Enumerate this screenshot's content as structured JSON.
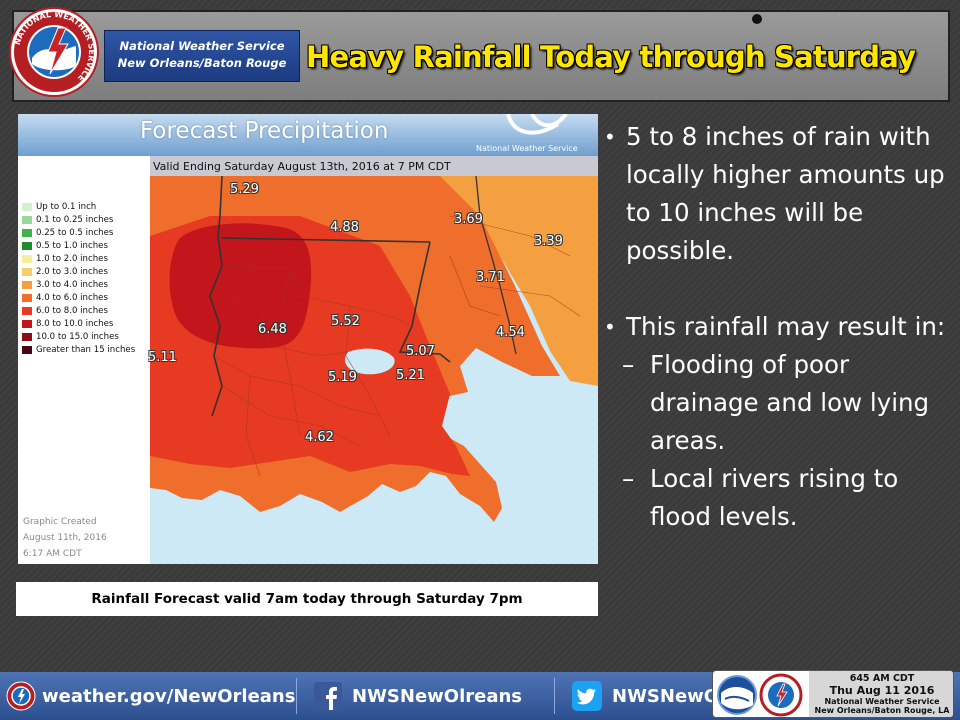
{
  "header": {
    "office_line1": "National Weather Service",
    "office_line2": "New Orleans/Baton Rouge",
    "title": "Heavy Rainfall Today through Saturday",
    "logo_text": "NATIONAL WEATHER SERVICE",
    "logo_icon": "nws-seal-icon"
  },
  "map": {
    "title": "Forecast Precipitation",
    "brand": "National Weather Service",
    "valid": "Valid Ending Saturday August 13th, 2016 at 7 PM CDT",
    "legend": [
      {
        "label": "Up to 0.1 inch",
        "color": "#d4f0d4"
      },
      {
        "label": "0.1 to 0.25 inches",
        "color": "#9ad89a"
      },
      {
        "label": "0.25 to 0.5 inches",
        "color": "#3fb24a"
      },
      {
        "label": "0.5 to 1.0 inches",
        "color": "#1f8a2e"
      },
      {
        "label": "1.0 to 2.0 inches",
        "color": "#f5eda0"
      },
      {
        "label": "2.0 to 3.0 inches",
        "color": "#f7cf6a"
      },
      {
        "label": "3.0 to 4.0 inches",
        "color": "#f5a040"
      },
      {
        "label": "4.0 to 6.0 inches",
        "color": "#ef6e2c"
      },
      {
        "label": "6.0 to 8.0 inches",
        "color": "#e63a22"
      },
      {
        "label": "8.0 to 10.0 inches",
        "color": "#c3151c"
      },
      {
        "label": "10.0 to 15.0 inches",
        "color": "#8a0d1a"
      },
      {
        "label": "Greater than 15 inches",
        "color": "#4a0514"
      }
    ],
    "created_line1": "Graphic Created",
    "created_line2": "August 11th, 2016",
    "created_line3": "6:17 AM CDT",
    "values": [
      "5.29",
      "4.88",
      "3.69",
      "3.39",
      "3.71",
      "6.48",
      "5.52",
      "4.54",
      "5.11",
      "5.07",
      "5.19",
      "5.21",
      "4.62"
    ],
    "colors": {
      "water": "#cde9f5",
      "orange": "#ef6e2c",
      "red": "#e63a22",
      "darkred": "#c3151c",
      "light_orange": "#f5a040"
    }
  },
  "caption": "Rainfall Forecast valid 7am today through Saturday 7pm",
  "bullets": [
    {
      "text": "5 to 8 inches of rain with locally higher amounts up to 10 inches will be possible."
    },
    {
      "text": "This rainfall may result in:"
    }
  ],
  "sub_bullets": [
    "Flooding of poor drainage and low lying areas.",
    "Local rivers rising to flood levels."
  ],
  "bullet_mark": "•",
  "dash_mark": "–",
  "footer": {
    "website": "weather.gov/NewOrleans",
    "facebook": "NWSNewOlreans",
    "twitter": "NWSNewOrleans",
    "colors": {
      "bar": "#3d62a6"
    }
  },
  "stamp": {
    "time": "645 AM CDT",
    "date": "Thu Aug 11 2016",
    "agency": "National Weather Service",
    "office": "New Orleans/Baton Rouge, LA",
    "year_mark": "2016"
  }
}
